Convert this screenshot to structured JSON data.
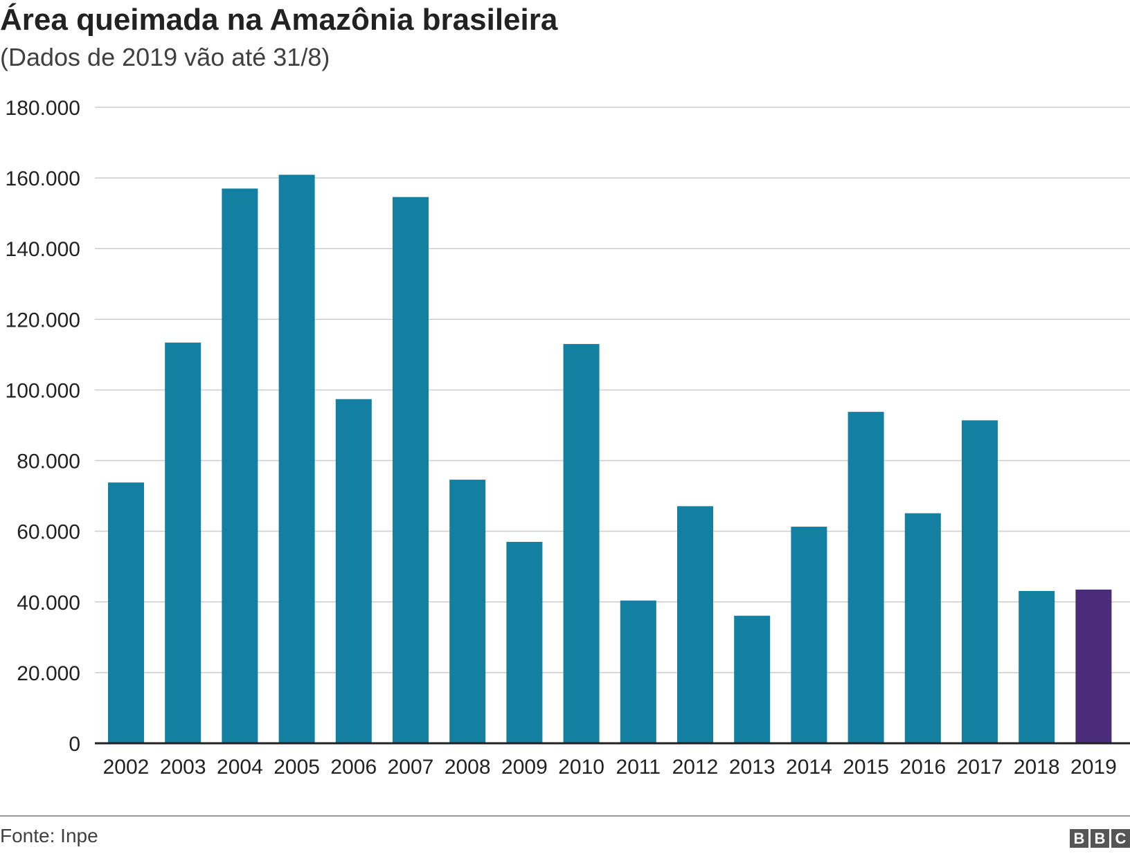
{
  "header": {
    "title": "Área queimada na Amazônia brasileira",
    "subtitle": "(Dados de 2019 vão até 31/8)"
  },
  "footer": {
    "source": "Fonte: Inpe",
    "logo_letters": [
      "B",
      "B",
      "C"
    ]
  },
  "colors": {
    "bar": "#1380A1",
    "highlight": "#4B2C7A",
    "grid": "#CCCCCC",
    "baseline": "#222222"
  },
  "chart_data": {
    "type": "bar",
    "title": "Área queimada na Amazônia brasileira",
    "subtitle": "(Dados de 2019 vão até 31/8)",
    "xlabel": "",
    "ylabel": "",
    "categories": [
      "2002",
      "2003",
      "2004",
      "2005",
      "2006",
      "2007",
      "2008",
      "2009",
      "2010",
      "2011",
      "2012",
      "2013",
      "2014",
      "2015",
      "2016",
      "2017",
      "2018",
      "2019"
    ],
    "values": [
      73800,
      113400,
      157000,
      160900,
      97400,
      154600,
      74600,
      57000,
      113000,
      40400,
      67100,
      36100,
      61300,
      93800,
      65100,
      91400,
      43100,
      43500
    ],
    "highlight_category": "2019",
    "ylim": [
      0,
      180000
    ],
    "yticks": [
      0,
      20000,
      40000,
      60000,
      80000,
      100000,
      120000,
      140000,
      160000,
      180000
    ],
    "ytick_labels": [
      "0",
      "20.000",
      "40.000",
      "60.000",
      "80.000",
      "100.000",
      "120.000",
      "140.000",
      "160.000",
      "180.000"
    ],
    "grid": true,
    "legend": "none"
  }
}
